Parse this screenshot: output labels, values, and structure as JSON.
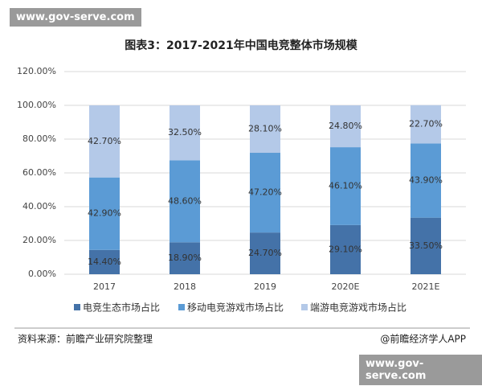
{
  "watermark_top": "www.gov-serve.com",
  "watermark_bottom": "www.gov-serve.com",
  "source": "资料来源：前瞻产业研究院整理",
  "credit": "@前瞻经济学人APP",
  "chart_data": {
    "type": "stacked_bar",
    "title": "图表3：2017-2021年中国电竞整体市场规模",
    "categories": [
      "2017",
      "2018",
      "2019",
      "2020E",
      "2021E"
    ],
    "series": [
      {
        "name": "电竞生态市场占比",
        "color": "#4472a8",
        "values": [
          14.4,
          18.9,
          24.7,
          29.1,
          33.5
        ],
        "value_labels": [
          "14.40%",
          "18.90%",
          "24.70%",
          "29.10%",
          "33.50%"
        ]
      },
      {
        "name": "移动电竞游戏市场占比",
        "color": "#5b9bd5",
        "values": [
          42.9,
          48.6,
          47.2,
          46.1,
          43.9
        ],
        "value_labels": [
          "42.90%",
          "48.60%",
          "47.20%",
          "46.10%",
          "43.90%"
        ]
      },
      {
        "name": "端游电竞游戏市场占比",
        "color": "#b4c9e8",
        "values": [
          42.7,
          32.5,
          28.1,
          24.8,
          22.7
        ],
        "value_labels": [
          "42.70%",
          "32.50%",
          "28.10%",
          "24.80%",
          "22.70%"
        ]
      }
    ],
    "ylim": [
      0,
      120
    ],
    "yticks": [
      {
        "value": 0,
        "label": "0.00%"
      },
      {
        "value": 20,
        "label": "20.00%"
      },
      {
        "value": 40,
        "label": "40.00%"
      },
      {
        "value": 60,
        "label": "60.00%"
      },
      {
        "value": 80,
        "label": "80.00%"
      },
      {
        "value": 100,
        "label": "100.00%"
      },
      {
        "value": 120,
        "label": "120.00%"
      }
    ],
    "grid": true
  }
}
